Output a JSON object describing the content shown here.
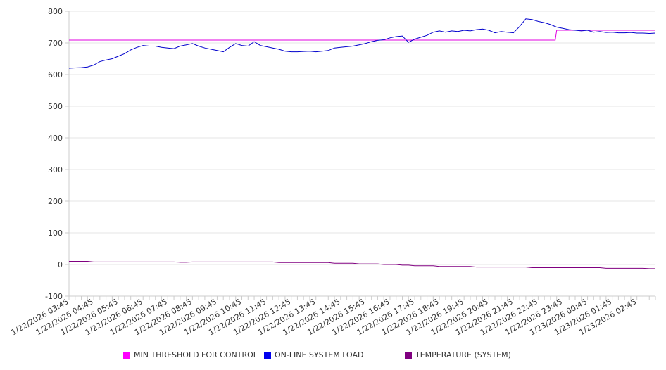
{
  "chart_data": {
    "type": "line",
    "title": "",
    "xlabel": "",
    "ylabel": "",
    "ylim": [
      -100,
      800
    ],
    "yticks": [
      "800",
      "700",
      "600",
      "500",
      "400",
      "300",
      "200",
      "100",
      "0",
      "-100"
    ],
    "grid": true,
    "legend_position": "bottom",
    "x_interval_minutes": 15,
    "x_tick_labels": [
      "1/22/2026 03:45",
      "1/22/2026 04:45",
      "1/22/2026 05:45",
      "1/22/2026 06:45",
      "1/22/2026 07:45",
      "1/22/2026 08:45",
      "1/22/2026 09:45",
      "1/22/2026 10:45",
      "1/22/2026 11:45",
      "1/22/2026 12:45",
      "1/22/2026 13:45",
      "1/22/2026 14:45",
      "1/22/2026 15:45",
      "1/22/2026 16:45",
      "1/22/2026 17:45",
      "1/22/2026 18:45",
      "1/22/2026 19:45",
      "1/22/2026 20:45",
      "1/22/2026 21:45",
      "1/22/2026 22:45",
      "1/22/2026 23:45",
      "1/23/2026 00:45",
      "1/23/2026 01:45",
      "1/23/2026 02:45"
    ],
    "series": [
      {
        "name": "MIN THRESHOLD FOR CONTROL",
        "color": "#e000e0",
        "values": [
          709,
          709,
          709,
          709,
          709,
          709,
          709,
          709,
          709,
          709,
          709,
          709,
          709,
          709,
          709,
          709,
          709,
          709,
          709,
          709,
          709,
          709,
          709,
          709,
          709,
          709,
          709,
          709,
          709,
          709,
          709,
          709,
          709,
          709,
          709,
          709,
          709,
          709,
          709,
          709,
          709,
          709,
          709,
          709,
          709,
          709,
          709,
          709,
          709,
          709,
          709,
          709,
          709,
          709,
          709,
          709,
          709,
          709,
          709,
          709,
          709,
          709,
          709,
          709,
          709,
          709,
          709,
          709,
          709,
          709,
          709,
          709,
          709,
          709,
          709,
          709,
          709,
          709,
          709,
          740,
          740,
          740,
          740,
          740,
          740,
          740,
          740,
          740,
          740,
          740,
          740,
          740,
          740,
          740,
          740,
          740
        ]
      },
      {
        "name": "ON-LINE SYSTEM LOAD",
        "color": "#0000cc",
        "values": [
          620,
          621,
          622,
          624,
          630,
          641,
          646,
          650,
          658,
          666,
          678,
          686,
          692,
          690,
          690,
          686,
          684,
          682,
          690,
          694,
          698,
          690,
          684,
          680,
          676,
          672,
          686,
          698,
          692,
          690,
          704,
          692,
          688,
          684,
          680,
          674,
          672,
          672,
          673,
          674,
          672,
          674,
          676,
          684,
          686,
          688,
          690,
          694,
          698,
          704,
          708,
          710,
          716,
          720,
          722,
          702,
          712,
          718,
          724,
          734,
          738,
          734,
          738,
          736,
          740,
          738,
          742,
          744,
          740,
          732,
          736,
          734,
          732,
          752,
          776,
          774,
          768,
          764,
          758,
          750,
          746,
          742,
          740,
          738,
          740,
          734,
          736,
          733,
          734,
          732,
          732,
          733,
          731,
          731,
          730,
          731
        ]
      },
      {
        "name": "TEMPERATURE (SYSTEM)",
        "color": "#800080",
        "values": [
          10,
          10,
          10,
          10,
          8,
          8,
          8,
          8,
          8,
          8,
          8,
          8,
          8,
          8,
          8,
          8,
          8,
          8,
          7,
          7,
          8,
          8,
          8,
          8,
          8,
          8,
          8,
          8,
          8,
          8,
          8,
          8,
          8,
          8,
          6,
          6,
          6,
          6,
          6,
          6,
          6,
          6,
          6,
          4,
          4,
          4,
          4,
          2,
          2,
          2,
          2,
          0,
          0,
          0,
          -2,
          -2,
          -4,
          -4,
          -4,
          -4,
          -6,
          -6,
          -6,
          -6,
          -6,
          -6,
          -8,
          -8,
          -8,
          -8,
          -8,
          -8,
          -8,
          -8,
          -8,
          -10,
          -10,
          -10,
          -10,
          -10,
          -10,
          -10,
          -10,
          -10,
          -10,
          -10,
          -10,
          -12,
          -12,
          -12,
          -12,
          -12,
          -12,
          -12,
          -13,
          -13
        ]
      }
    ]
  }
}
